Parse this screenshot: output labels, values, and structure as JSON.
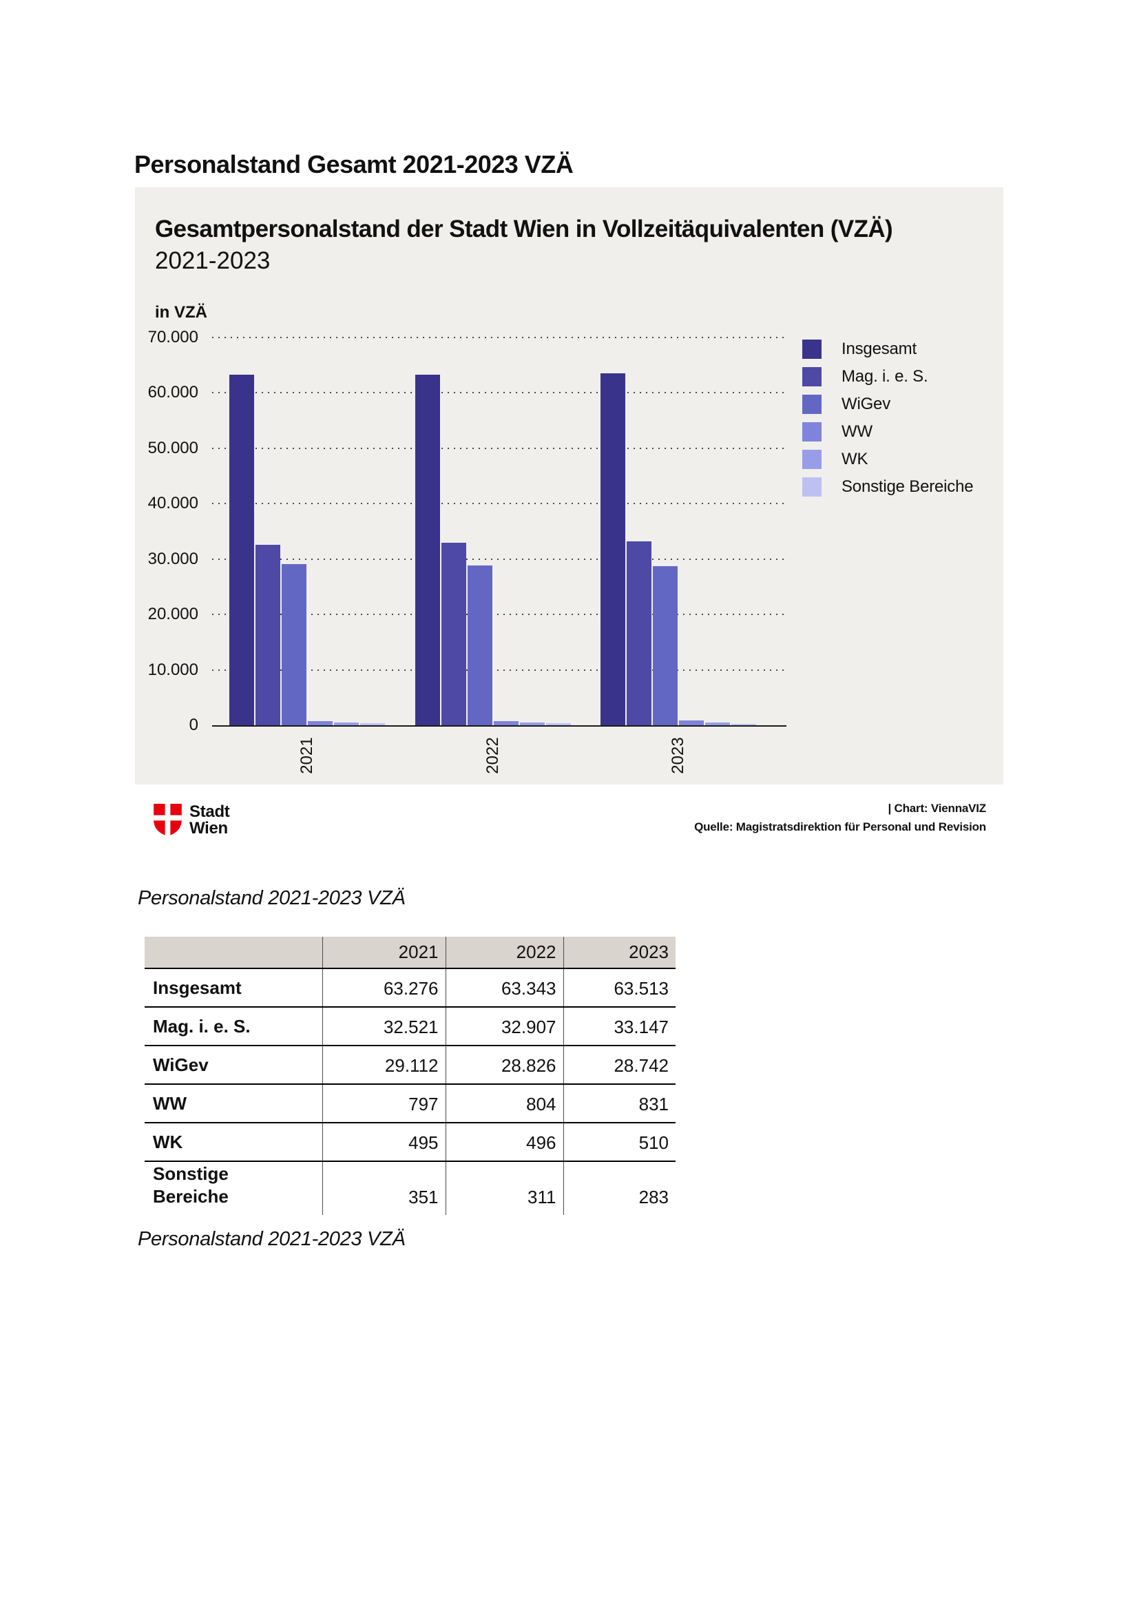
{
  "page": {
    "title": "Personalstand Gesamt 2021-2023 VZÄ"
  },
  "chart": {
    "title": "Gesamtpersonalstand der Stadt Wien in Vollzeitäquivalenten (VZÄ)",
    "subtitle": "2021-2023",
    "unit_label": "in VZÄ"
  },
  "footer": {
    "logo_line1": "Stadt",
    "logo_line2": "Wien",
    "logo_color": "#e8000f",
    "credit": "| Chart: ViennaVIZ",
    "source": "Quelle: Magistratsdirektion für Personal und Revision"
  },
  "chart_data": {
    "type": "bar",
    "title": "Gesamtpersonalstand der Stadt Wien in Vollzeitäquivalenten (VZÄ) 2021-2023",
    "xlabel": "",
    "ylabel": "in VZÄ",
    "categories": [
      "2021",
      "2022",
      "2023"
    ],
    "series": [
      {
        "name": "Insgesamt",
        "color": "#3a338b",
        "values": [
          63276,
          63343,
          63513
        ]
      },
      {
        "name": "Mag. i. e. S.",
        "color": "#4e49a5",
        "values": [
          32521,
          32907,
          33147
        ]
      },
      {
        "name": "WiGev",
        "color": "#6367c4",
        "values": [
          29112,
          28826,
          28742
        ]
      },
      {
        "name": "WW",
        "color": "#7f83dc",
        "values": [
          797,
          804,
          831
        ]
      },
      {
        "name": "WK",
        "color": "#989de7",
        "values": [
          495,
          496,
          510
        ]
      },
      {
        "name": "Sonstige Bereiche",
        "color": "#bdc1f2",
        "values": [
          351,
          311,
          283
        ]
      }
    ],
    "ylim": [
      0,
      70000
    ],
    "yticks": {
      "values": [
        70000,
        60000,
        50000,
        40000,
        30000,
        20000,
        10000,
        0
      ],
      "labels": [
        "70.000",
        "60.000",
        "50.000",
        "40.000",
        "30.000",
        "20.000",
        "10.000",
        "0"
      ]
    },
    "grid": "horizontal dotted",
    "legend_position": "right",
    "panel_background": "#f0efec"
  },
  "table": {
    "caption_top": "Personalstand 2021-2023 VZÄ",
    "caption_bottom": "Personalstand 2021-2023 VZÄ",
    "header_background": "#d9d4ce",
    "columns": [
      "",
      "2021",
      "2022",
      "2023"
    ],
    "rows": [
      {
        "label_lines": [
          "Insgesamt"
        ],
        "values": [
          "63.276",
          "63.343",
          "63.513"
        ]
      },
      {
        "label_lines": [
          "Mag. i. e. S."
        ],
        "values": [
          "32.521",
          "32.907",
          "33.147"
        ]
      },
      {
        "label_lines": [
          "WiGev"
        ],
        "values": [
          "29.112",
          "28.826",
          "28.742"
        ]
      },
      {
        "label_lines": [
          "WW"
        ],
        "values": [
          "797",
          "804",
          "831"
        ]
      },
      {
        "label_lines": [
          "WK"
        ],
        "values": [
          "495",
          "496",
          "510"
        ]
      },
      {
        "label_lines": [
          "Sonstige",
          "Bereiche"
        ],
        "values": [
          "351",
          "311",
          "283"
        ]
      }
    ]
  }
}
